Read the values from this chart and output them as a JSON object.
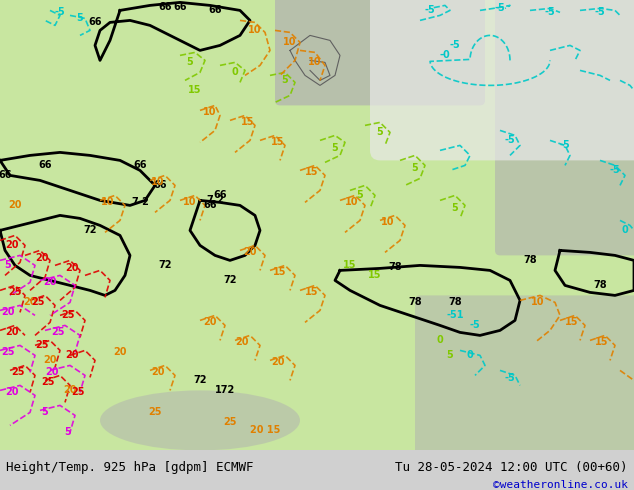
{
  "title_left": "Height/Temp. 925 hPa [gdpm] ECMWF",
  "title_right": "Tu 28-05-2024 12:00 UTC (00+60)",
  "credit": "©weatheronline.co.uk",
  "background_color": "#d0d0d0",
  "map_bg_light_green": "#c8e6a0",
  "map_bg_white": "#f0f0f0",
  "map_land_gray": "#b0b0b0",
  "contour_black_color": "#000000",
  "contour_cyan_color": "#00c8c8",
  "contour_green_color": "#80c800",
  "contour_orange_color": "#e08000",
  "contour_red_color": "#e00000",
  "contour_magenta_color": "#e000e0",
  "label_fontsize": 7,
  "title_fontsize": 9,
  "credit_fontsize": 8,
  "figsize": [
    6.34,
    4.9
  ],
  "dpi": 100
}
